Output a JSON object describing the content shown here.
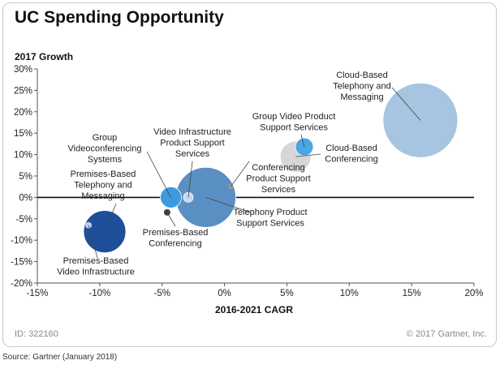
{
  "page": {
    "title": "UC Spending Opportunity",
    "id_text": "ID: 322160",
    "copyright": "© 2017 Gartner, Inc.",
    "source": "Source: Gartner (January 2018)"
  },
  "chart_data": {
    "type": "bubble",
    "ylabel": "2017 Growth",
    "xlabel": "2016-2021 CAGR",
    "xlim": [
      -15,
      20
    ],
    "ylim": [
      -20,
      30
    ],
    "xticks": [
      "-15%",
      "-10%",
      "-5%",
      "0%",
      "5%",
      "10%",
      "15%",
      "20%"
    ],
    "yticks": [
      "30%",
      "25%",
      "20%",
      "15%",
      "10%",
      "5%",
      "0%",
      "-5%",
      "-10%",
      "-15%",
      "-20%"
    ],
    "grid": false,
    "points": [
      {
        "label": "Cloud-Based\nTelephony and\nMessaging",
        "x": 15.7,
        "y": 18.0,
        "size": 46,
        "color": "#a7c5e0"
      },
      {
        "label": "Group Video Product\nSupport Services",
        "x": 6.4,
        "y": 11.8,
        "size": 11,
        "color": "#4aa6e6"
      },
      {
        "label": "Cloud-Based\nConferencing",
        "x": 5.7,
        "y": 9.5,
        "size": 19,
        "color": "#d6d6d6"
      },
      {
        "label": "Conferencing\nProduct Support\nServices",
        "x": 0.5,
        "y": 2.5,
        "size": 3,
        "color": "#9a9a9a"
      },
      {
        "label": "Telephony Product\nSupport Services",
        "x": -1.5,
        "y": 0.0,
        "size": 37,
        "color": "#5a8fc3"
      },
      {
        "label": "Video Infrastructure\nProduct Support\nServices",
        "x": -2.9,
        "y": 0.0,
        "size": 6,
        "color": "#c6d8ec"
      },
      {
        "label": "Group\nVideoconferencing\nSystems",
        "x": -4.3,
        "y": 0.0,
        "size": 13,
        "color": "#3c9be0"
      },
      {
        "label": "Premises-Based\nConferencing",
        "x": -4.6,
        "y": -3.5,
        "size": 4,
        "color": "#404040"
      },
      {
        "label": "Premises-Based\nTelephony and\nMessaging",
        "x": -9.6,
        "y": -8.0,
        "size": 26,
        "color": "#1e4f9a"
      },
      {
        "label": "Premises-Based\nVideo Infrastructure",
        "x": -10.9,
        "y": -6.5,
        "size": 4,
        "color": "#bcd2ea"
      }
    ]
  }
}
